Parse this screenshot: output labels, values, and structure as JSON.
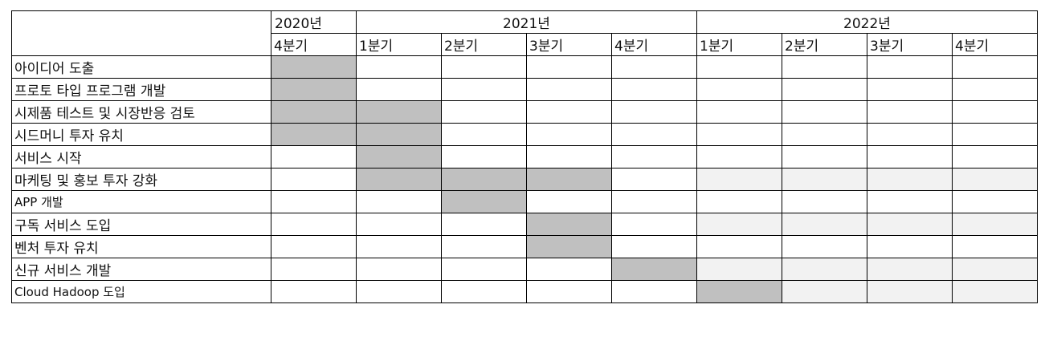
{
  "years": [
    "2020년",
    "2021년",
    "2022년"
  ],
  "quarters": [
    "4분기",
    "1분기",
    "2분기",
    "3분기",
    "4분기",
    "1분기",
    "2분기",
    "3분기",
    "4분기"
  ],
  "tasks": [
    "아이디어 도출",
    "프로토 타입 프로그램 개발",
    "시제품 테스트 및 시장반응 검토",
    "시드머니 투자 유치",
    "서비스 시작",
    "마케팅 및 홍보 투자 강화",
    "APP 개발",
    "구독 서비스 도입",
    "벤처 투자 유치",
    "신규 서비스 개발",
    "Cloud Hadoop 도입"
  ],
  "schedule_fill": [
    [
      "active",
      "",
      "",
      "",
      "",
      "",
      "",
      "",
      ""
    ],
    [
      "active",
      "",
      "",
      "",
      "",
      "",
      "",
      "",
      ""
    ],
    [
      "active",
      "active",
      "",
      "",
      "",
      "",
      "",
      "",
      ""
    ],
    [
      "active",
      "active",
      "",
      "",
      "",
      "",
      "",
      "",
      ""
    ],
    [
      "",
      "active",
      "",
      "",
      "",
      "",
      "",
      "",
      ""
    ],
    [
      "",
      "active",
      "active",
      "active",
      "",
      "planned",
      "planned",
      "planned",
      "planned"
    ],
    [
      "",
      "",
      "active",
      "",
      "",
      "",
      "",
      "",
      ""
    ],
    [
      "",
      "",
      "",
      "active",
      "",
      "planned",
      "planned",
      "planned",
      "planned"
    ],
    [
      "",
      "",
      "",
      "active",
      "",
      "",
      "",
      "",
      ""
    ],
    [
      "",
      "",
      "",
      "",
      "active",
      "planned",
      "planned",
      "planned",
      "planned"
    ],
    [
      "",
      "",
      "",
      "",
      "",
      "active",
      "planned",
      "planned",
      "planned"
    ]
  ],
  "colors": {
    "active": "#c0c0c0",
    "planned": "#f2f2f2",
    "border": "#000000"
  }
}
